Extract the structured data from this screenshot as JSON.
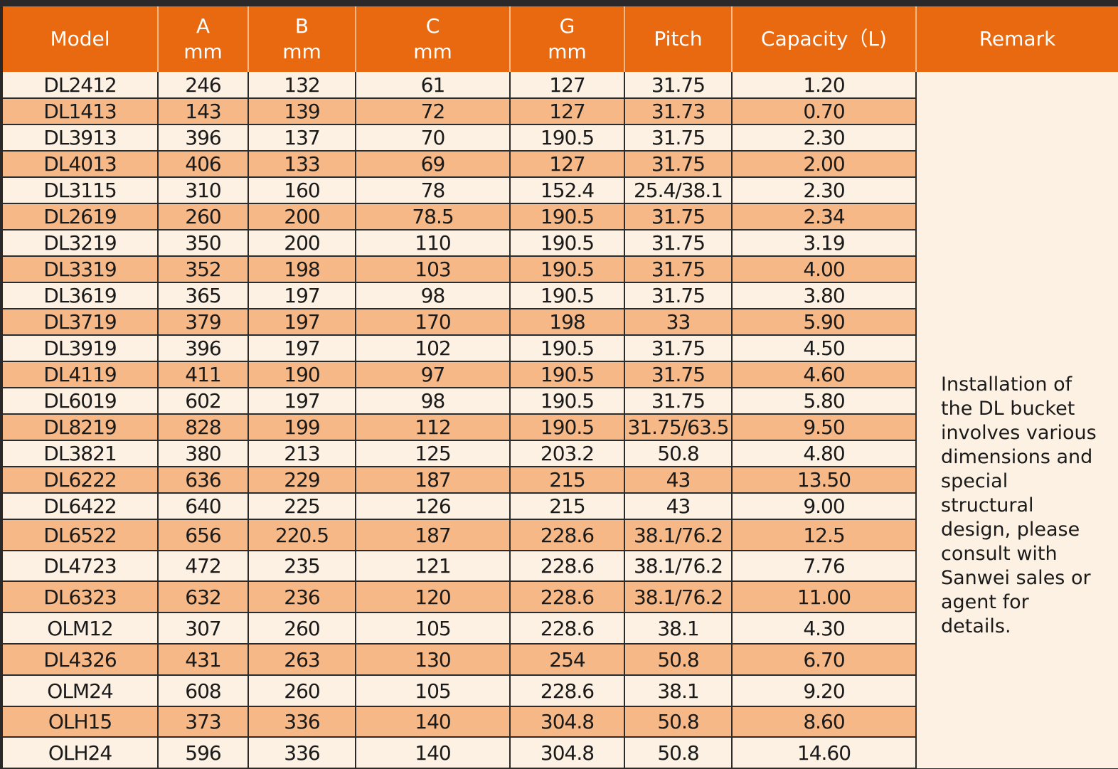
{
  "headers": [
    {
      "l1": "Model",
      "l2": ""
    },
    {
      "l1": "A",
      "l2": "mm"
    },
    {
      "l1": "B",
      "l2": "mm"
    },
    {
      "l1": "C",
      "l2": "mm"
    },
    {
      "l1": "G",
      "l2": "mm"
    },
    {
      "l1": "Pitch",
      "l2": ""
    },
    {
      "l1": "Capacity（L)",
      "l2": ""
    },
    {
      "l1": "Remark",
      "l2": ""
    }
  ],
  "rows": [
    [
      "DL2412",
      "246",
      "132",
      "61",
      "127",
      "31.75",
      "1.20"
    ],
    [
      "DL1413",
      "143",
      "139",
      "72",
      "127",
      "31.73",
      "0.70"
    ],
    [
      "DL3913",
      "396",
      "137",
      "70",
      "190.5",
      "31.75",
      "2.30"
    ],
    [
      "DL4013",
      "406",
      "133",
      "69",
      "127",
      "31.75",
      "2.00"
    ],
    [
      "DL3115",
      "310",
      "160",
      "78",
      "152.4",
      "25.4/38.1",
      "2.30"
    ],
    [
      "DL2619",
      "260",
      "200",
      "78.5",
      "190.5",
      "31.75",
      "2.34"
    ],
    [
      "DL3219",
      "350",
      "200",
      "110",
      "190.5",
      "31.75",
      "3.19"
    ],
    [
      "DL3319",
      "352",
      "198",
      "103",
      "190.5",
      "31.75",
      "4.00"
    ],
    [
      "DL3619",
      "365",
      "197",
      "98",
      "190.5",
      "31.75",
      "3.80"
    ],
    [
      "DL3719",
      "379",
      "197",
      "170",
      "198",
      "33",
      "5.90"
    ],
    [
      "DL3919",
      "396",
      "197",
      "102",
      "190.5",
      "31.75",
      "4.50"
    ],
    [
      "DL4119",
      "411",
      "190",
      "97",
      "190.5",
      "31.75",
      "4.60"
    ],
    [
      "DL6019",
      "602",
      "197",
      "98",
      "190.5",
      "31.75",
      "5.80"
    ],
    [
      "DL8219",
      "828",
      "199",
      "112",
      "190.5",
      "31.75/63.5",
      "9.50"
    ],
    [
      "DL3821",
      "380",
      "213",
      "125",
      "203.2",
      "50.8",
      "4.80"
    ],
    [
      "DL6222",
      "636",
      "229",
      "187",
      "215",
      "43",
      "13.50"
    ],
    [
      "DL6422",
      "640",
      "225",
      "126",
      "215",
      "43",
      "9.00"
    ],
    [
      "DL6522",
      "656",
      "220.5",
      "187",
      "228.6",
      "38.1/76.2",
      "12.5"
    ],
    [
      "DL4723",
      "472",
      "235",
      "121",
      "228.6",
      "38.1/76.2",
      "7.76"
    ],
    [
      "DL6323",
      "632",
      "236",
      "120",
      "228.6",
      "38.1/76.2",
      "11.00"
    ],
    [
      "OLM12",
      "307",
      "260",
      "105",
      "228.6",
      "38.1",
      "4.30"
    ],
    [
      "DL4326",
      "431",
      "263",
      "130",
      "254",
      "50.8",
      "6.70"
    ],
    [
      "OLM24",
      "608",
      "260",
      "105",
      "228.6",
      "38.1",
      "9.20"
    ],
    [
      "OLH15",
      "373",
      "336",
      "140",
      "304.8",
      "50.8",
      "8.60"
    ],
    [
      "OLH24",
      "596",
      "336",
      "140",
      "304.8",
      "50.8",
      "14.60"
    ]
  ],
  "remark": "Installation of the DL bucket involves various dimensions and special structural design, please consult with Sanwei sales or agent for details.",
  "colors": {
    "header_bg": "#e8690f",
    "row_light": "#fcf1e3",
    "row_dark": "#f6b886"
  }
}
